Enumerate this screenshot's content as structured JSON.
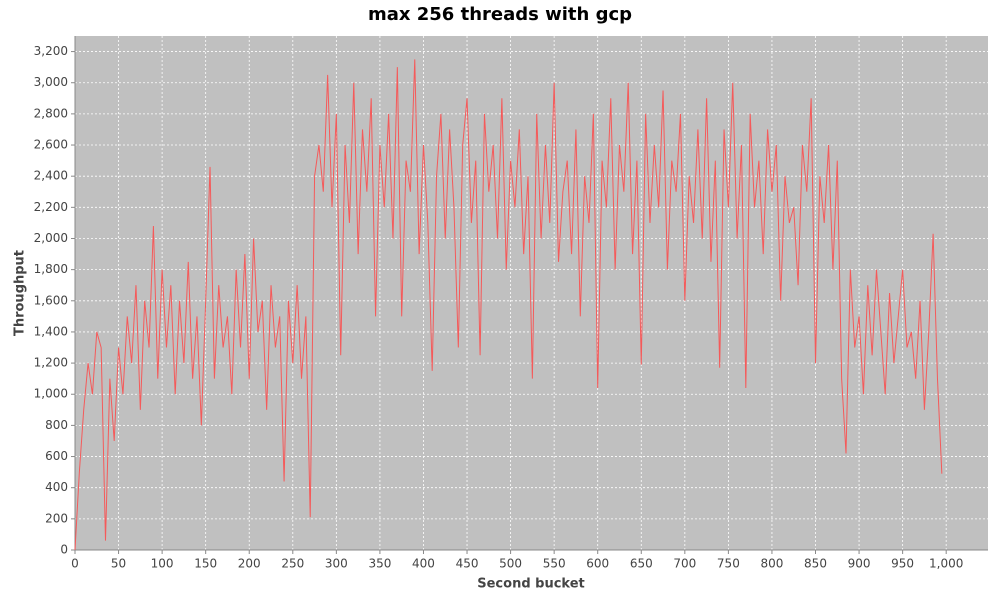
{
  "chart_data": {
    "type": "line",
    "title": "max 256 threads with gcp",
    "x_label": "Second bucket",
    "y_label": "Throughput",
    "x": [
      0,
      5,
      10,
      15,
      20,
      25,
      30,
      35,
      40,
      45,
      50,
      55,
      60,
      65,
      70,
      75,
      80,
      85,
      90,
      95,
      100,
      105,
      110,
      115,
      120,
      125,
      130,
      135,
      140,
      145,
      150,
      155,
      160,
      165,
      170,
      175,
      180,
      185,
      190,
      195,
      200,
      205,
      210,
      215,
      220,
      225,
      230,
      235,
      240,
      245,
      250,
      255,
      260,
      265,
      270,
      275,
      280,
      285,
      290,
      295,
      300,
      305,
      310,
      315,
      320,
      325,
      330,
      335,
      340,
      345,
      350,
      355,
      360,
      365,
      370,
      375,
      380,
      385,
      390,
      395,
      400,
      405,
      410,
      415,
      420,
      425,
      430,
      435,
      440,
      445,
      450,
      455,
      460,
      465,
      470,
      475,
      480,
      485,
      490,
      495,
      500,
      505,
      510,
      515,
      520,
      525,
      530,
      535,
      540,
      545,
      550,
      555,
      560,
      565,
      570,
      575,
      580,
      585,
      590,
      595,
      600,
      605,
      610,
      615,
      620,
      625,
      630,
      635,
      640,
      645,
      650,
      655,
      660,
      665,
      670,
      675,
      680,
      685,
      690,
      695,
      700,
      705,
      710,
      715,
      720,
      725,
      730,
      735,
      740,
      745,
      750,
      755,
      760,
      765,
      770,
      775,
      780,
      785,
      790,
      795,
      800,
      805,
      810,
      815,
      820,
      825,
      830,
      835,
      840,
      845,
      850,
      855,
      860,
      865,
      870,
      875,
      880,
      885,
      890,
      895,
      900,
      905,
      910,
      915,
      920,
      925,
      930,
      935,
      940,
      945,
      950,
      955,
      960,
      965,
      970,
      975,
      980,
      985,
      990,
      995
    ],
    "series": [
      {
        "name": "Throughput",
        "color": "#f55a5a",
        "values": [
          0,
          500,
          900,
          1200,
          1000,
          1400,
          1300,
          60,
          1100,
          700,
          1300,
          1000,
          1500,
          1200,
          1700,
          900,
          1600,
          1300,
          2080,
          1100,
          1800,
          1300,
          1700,
          1000,
          1600,
          1200,
          1850,
          1100,
          1500,
          800,
          1600,
          2460,
          1100,
          1700,
          1300,
          1500,
          1000,
          1800,
          1300,
          1900,
          1100,
          2000,
          1400,
          1600,
          900,
          1700,
          1300,
          1500,
          440,
          1600,
          1200,
          1700,
          1100,
          1500,
          210,
          2400,
          2600,
          2300,
          3050,
          2200,
          2800,
          1250,
          2600,
          2100,
          3000,
          1900,
          2700,
          2300,
          2900,
          1500,
          2600,
          2200,
          2800,
          2000,
          3100,
          1500,
          2500,
          2300,
          3150,
          1900,
          2600,
          2100,
          1150,
          2400,
          2800,
          2000,
          2700,
          2200,
          1300,
          2600,
          2900,
          2100,
          2500,
          1250,
          2800,
          2300,
          2600,
          2000,
          2900,
          1800,
          2500,
          2200,
          2700,
          1900,
          2400,
          1100,
          2800,
          2000,
          2600,
          2100,
          3000,
          1850,
          2300,
          2500,
          1900,
          2700,
          1500,
          2400,
          2100,
          2800,
          1040,
          2500,
          2200,
          2900,
          1800,
          2600,
          2300,
          3000,
          1900,
          2500,
          1190,
          2800,
          2100,
          2600,
          2200,
          2950,
          1800,
          2500,
          2300,
          2800,
          1600,
          2400,
          2100,
          2700,
          2000,
          2900,
          1850,
          2500,
          1170,
          2700,
          2200,
          3000,
          2000,
          2600,
          1040,
          2800,
          2200,
          2500,
          1900,
          2700,
          2300,
          2600,
          1600,
          2400,
          2100,
          2200,
          1700,
          2600,
          2300,
          2900,
          1200,
          2400,
          2100,
          2600,
          1800,
          2500,
          1100,
          620,
          1800,
          1300,
          1500,
          1000,
          1700,
          1250,
          1800,
          1400,
          1000,
          1650,
          1200,
          1500,
          1800,
          1300,
          1400,
          1100,
          1600,
          900,
          1400,
          2030,
          1100,
          490
        ]
      }
    ],
    "xlim": [
      0,
      1048
    ],
    "ylim": [
      0,
      3300
    ],
    "xticks": [
      0,
      50,
      100,
      150,
      200,
      250,
      300,
      350,
      400,
      450,
      500,
      550,
      600,
      650,
      700,
      750,
      800,
      850,
      900,
      950,
      {
        "value": 1000,
        "label": "1,000"
      }
    ],
    "yticks": [
      0,
      200,
      400,
      600,
      800,
      {
        "value": 1000,
        "label": "1,000"
      },
      {
        "value": 1200,
        "label": "1,200"
      },
      {
        "value": 1400,
        "label": "1,400"
      },
      {
        "value": 1600,
        "label": "1,600"
      },
      {
        "value": 1800,
        "label": "1,800"
      },
      {
        "value": 2000,
        "label": "2,000"
      },
      {
        "value": 2200,
        "label": "2,200"
      },
      {
        "value": 2400,
        "label": "2,400"
      },
      {
        "value": 2600,
        "label": "2,600"
      },
      {
        "value": 2800,
        "label": "2,800"
      },
      {
        "value": 3000,
        "label": "3,000"
      },
      {
        "value": 3200,
        "label": "3,200"
      }
    ],
    "grid": true,
    "background": "#c0c0c0"
  }
}
